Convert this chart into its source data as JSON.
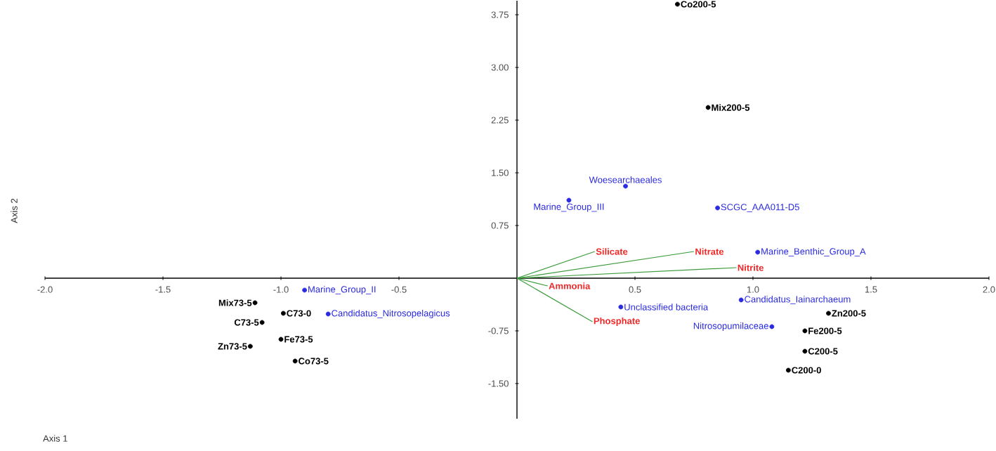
{
  "chart_data": {
    "type": "scatter",
    "xlabel": "Axis 1",
    "ylabel": "Axis 2",
    "xlim": [
      -2,
      2
    ],
    "ylim": [
      -2,
      3.95
    ],
    "xticks": [
      {
        "value": -2,
        "label": "-2.0"
      },
      {
        "value": -1.5,
        "label": "-1.5"
      },
      {
        "value": -1,
        "label": "-1.0"
      },
      {
        "value": -0.5,
        "label": "-0.5"
      },
      {
        "value": 0.5,
        "label": "0.5"
      },
      {
        "value": 1,
        "label": "1.0"
      },
      {
        "value": 1.5,
        "label": "1.5"
      },
      {
        "value": 2,
        "label": "2.0"
      }
    ],
    "yticks": [
      {
        "value": -1.5,
        "label": "-1.50"
      },
      {
        "value": -0.75,
        "label": "-0.75"
      },
      {
        "value": 0.75,
        "label": "0.75"
      },
      {
        "value": 1.5,
        "label": "1.50"
      },
      {
        "value": 2.25,
        "label": "2.25"
      },
      {
        "value": 3,
        "label": "3.00"
      },
      {
        "value": 3.75,
        "label": "3.75"
      }
    ],
    "marker": "circle",
    "series": [
      {
        "type": "scatter",
        "color": "#000000",
        "x": [
          0.68,
          0.81,
          1.32,
          1.22,
          1.22,
          1.15,
          -1.11,
          -0.99,
          -1.08,
          -1.0,
          -1.13,
          -0.94
        ],
        "values": [
          3.9,
          2.43,
          -0.5,
          -0.75,
          -1.04,
          -1.31,
          -0.35,
          -0.5,
          -0.63,
          -0.87,
          -0.97,
          -1.18
        ],
        "value_labels": [
          "Co200-5",
          "Mix200-5",
          "Zn200-5",
          "Fe200-5",
          "C200-5",
          "C200-0",
          "Mix73-5",
          "C73-0",
          "C73-5",
          "Fe73-5",
          "Zn73-5",
          "Co73-5"
        ]
      },
      {
        "type": "scatter",
        "color": "#2a2ae0",
        "x": [
          0.46,
          0.22,
          0.85,
          1.02,
          0.44,
          0.95,
          1.08,
          -0.9,
          -0.8
        ],
        "values": [
          1.31,
          1.11,
          1.0,
          0.37,
          -0.41,
          -0.31,
          -0.69,
          -0.17,
          -0.51
        ],
        "value_labels": [
          "Woesearchaeales",
          "Marine_Group_III",
          "SCGC_AAA011-D5",
          "Marine_Benthic_Group_A",
          "Unclassified bacteria",
          "Candidatus_Iainarchaeum",
          "Nitrosopumilaceae",
          "Marine_Group_II",
          "Candidatus_Nitrosopelagicus"
        ]
      },
      {
        "type": "line",
        "name": "Silicate",
        "color": "#3a9a3a",
        "marker": "none",
        "x": [
          0,
          0.33
        ],
        "values": [
          0,
          0.38
        ]
      },
      {
        "type": "line",
        "name": "Nitrate",
        "color": "#3a9a3a",
        "marker": "none",
        "x": [
          0,
          0.75
        ],
        "values": [
          0,
          0.38
        ]
      },
      {
        "type": "line",
        "name": "Nitrite",
        "color": "#3a9a3a",
        "marker": "none",
        "x": [
          0,
          0.93
        ],
        "values": [
          0,
          0.15
        ]
      },
      {
        "type": "line",
        "name": "Ammonia",
        "color": "#3a9a3a",
        "marker": "none",
        "x": [
          0,
          0.13
        ],
        "values": [
          0,
          -0.11
        ]
      },
      {
        "type": "line",
        "name": "Phosphate",
        "color": "#3a9a3a",
        "marker": "none",
        "x": [
          0,
          0.32
        ],
        "values": [
          0,
          -0.62
        ]
      }
    ]
  }
}
